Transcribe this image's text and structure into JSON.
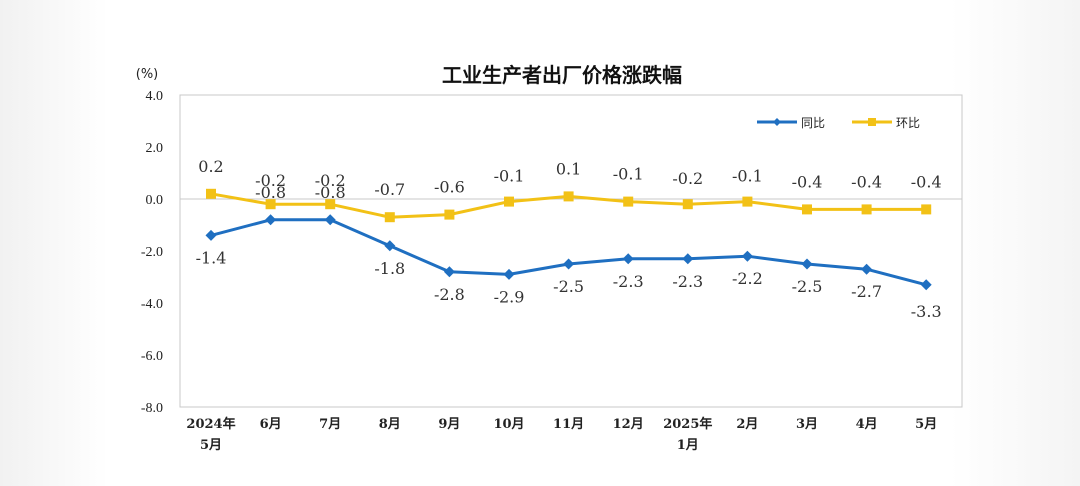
{
  "chart_data": {
    "type": "line",
    "title": "工业生产者出厂价格涨跌幅",
    "unit": "(%)",
    "ylim": [
      -8.0,
      4.0
    ],
    "yticks": [
      "4.0",
      "2.0",
      "0.0",
      "-2.0",
      "-4.0",
      "-6.0",
      "-8.0"
    ],
    "ytick_values": [
      4,
      2,
      0,
      -2,
      -4,
      -6,
      -8
    ],
    "categories": [
      [
        "2024年",
        "5月"
      ],
      [
        "6月"
      ],
      [
        "7月"
      ],
      [
        "8月"
      ],
      [
        "9月"
      ],
      [
        "10月"
      ],
      [
        "11月"
      ],
      [
        "12月"
      ],
      [
        "2025年",
        "1月"
      ],
      [
        "2月"
      ],
      [
        "3月"
      ],
      [
        "4月"
      ],
      [
        "5月"
      ]
    ],
    "series": [
      {
        "name": "同比",
        "color": "#1f6fc1",
        "marker": "diamond",
        "values": [
          -1.4,
          -0.8,
          -0.8,
          -1.8,
          -2.8,
          -2.9,
          -2.5,
          -2.3,
          -2.3,
          -2.2,
          -2.5,
          -2.7,
          -3.3
        ],
        "labels": [
          "-1.4",
          "-0.8",
          "-0.8",
          "-1.8",
          "-2.8",
          "-2.9",
          "-2.5",
          "-2.3",
          "-2.3",
          "-2.2",
          "-2.5",
          "-2.7",
          "-3.3"
        ]
      },
      {
        "name": "环比",
        "color": "#f2c116",
        "marker": "square",
        "values": [
          0.2,
          -0.2,
          -0.2,
          -0.7,
          -0.6,
          -0.1,
          0.1,
          -0.1,
          -0.2,
          -0.1,
          -0.4,
          -0.4,
          -0.4
        ],
        "labels": [
          "0.2",
          "-0.2",
          "-0.2",
          "-0.7",
          "-0.6",
          "-0.1",
          "0.1",
          "-0.1",
          "-0.2",
          "-0.1",
          "-0.4",
          "-0.4",
          "-0.4"
        ]
      }
    ],
    "legend_position": "top-right",
    "grid": false
  }
}
